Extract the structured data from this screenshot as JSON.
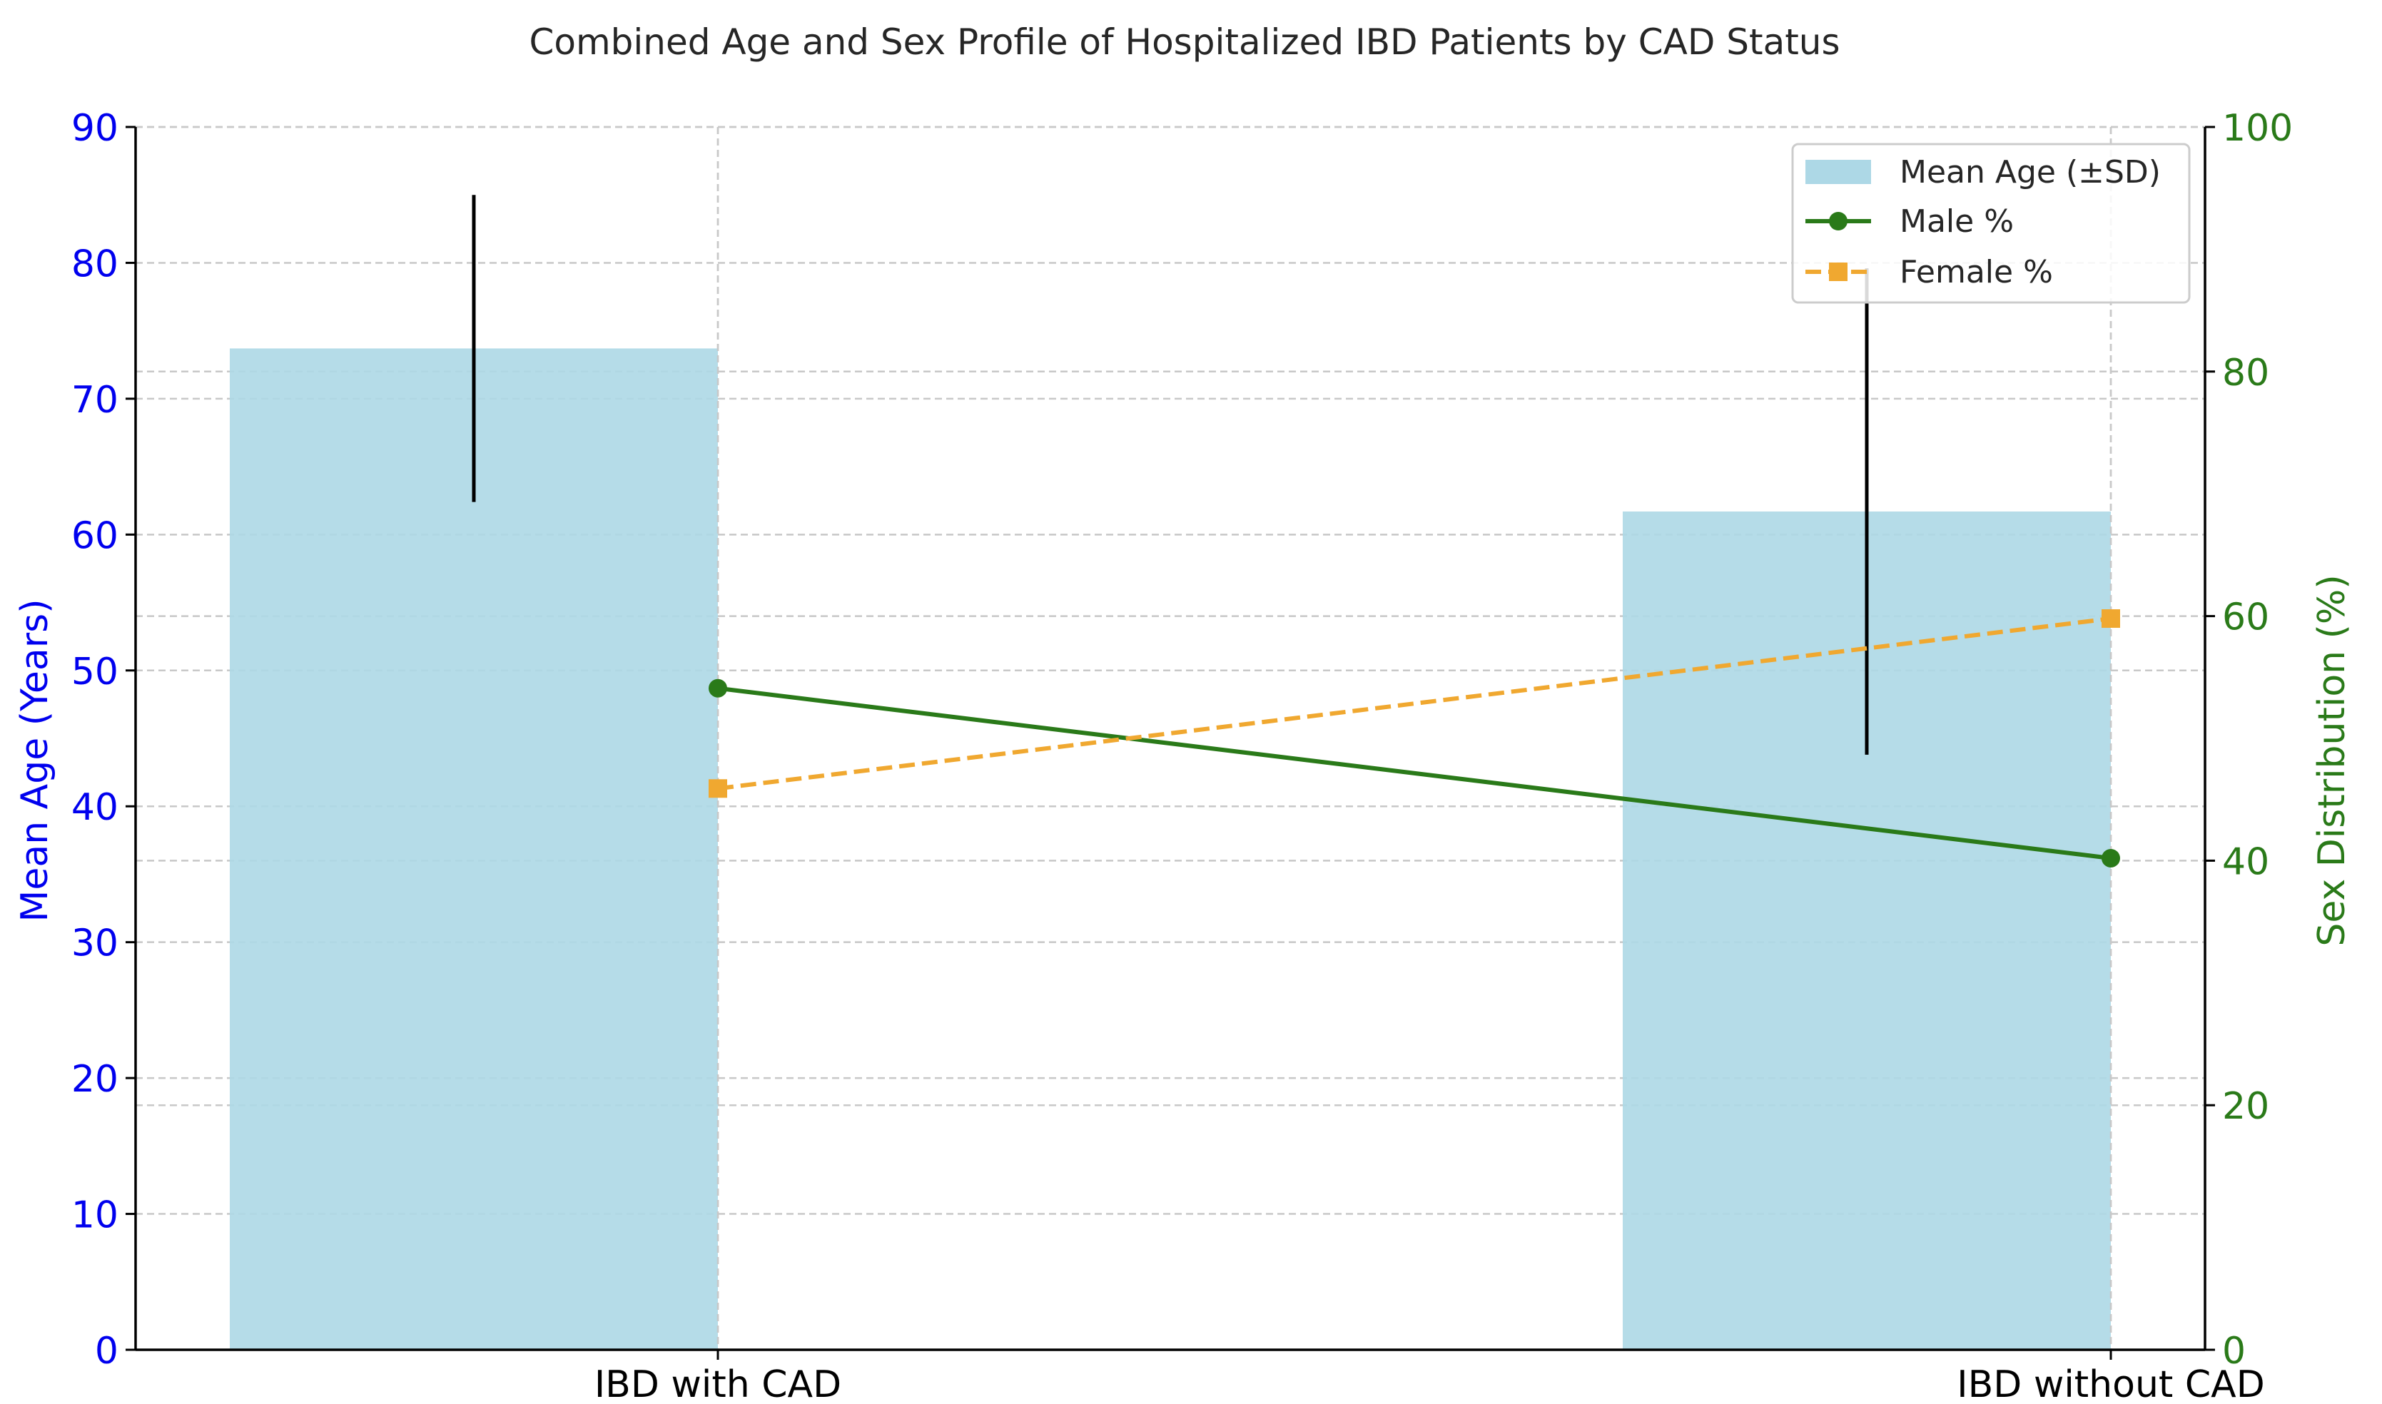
{
  "chart_data": {
    "type": "bar",
    "title": "Combined Age and Sex Profile of Hospitalized IBD Patients by CAD Status",
    "categories": [
      "IBD with CAD",
      "IBD without CAD"
    ],
    "left_axis": {
      "label": "Mean Age (Years)",
      "ylim": [
        0,
        90
      ],
      "ticks": [
        "0",
        "10",
        "20",
        "30",
        "40",
        "50",
        "60",
        "70",
        "80",
        "90"
      ],
      "color": "#0000ee"
    },
    "right_axis": {
      "label": "Sex Distribution (%)",
      "ylim": [
        0,
        100
      ],
      "ticks": [
        "0",
        "20",
        "40",
        "60",
        "80",
        "100"
      ],
      "color": "#2a7a19"
    },
    "bars": {
      "name": "Mean Age (±SD)",
      "values": [
        73.7,
        61.7
      ],
      "sd": [
        11.3,
        17.9
      ],
      "color": "#add8e6"
    },
    "series": [
      {
        "name": "Male %",
        "values": [
          54.1,
          40.2
        ],
        "color": "#2a7a19",
        "marker": "circle",
        "line": "solid"
      },
      {
        "name": "Female %",
        "values": [
          45.9,
          59.8
        ],
        "color": "#f0a830",
        "marker": "square",
        "line": "dashed"
      }
    ],
    "grid": true,
    "legend_position": "top-right"
  }
}
